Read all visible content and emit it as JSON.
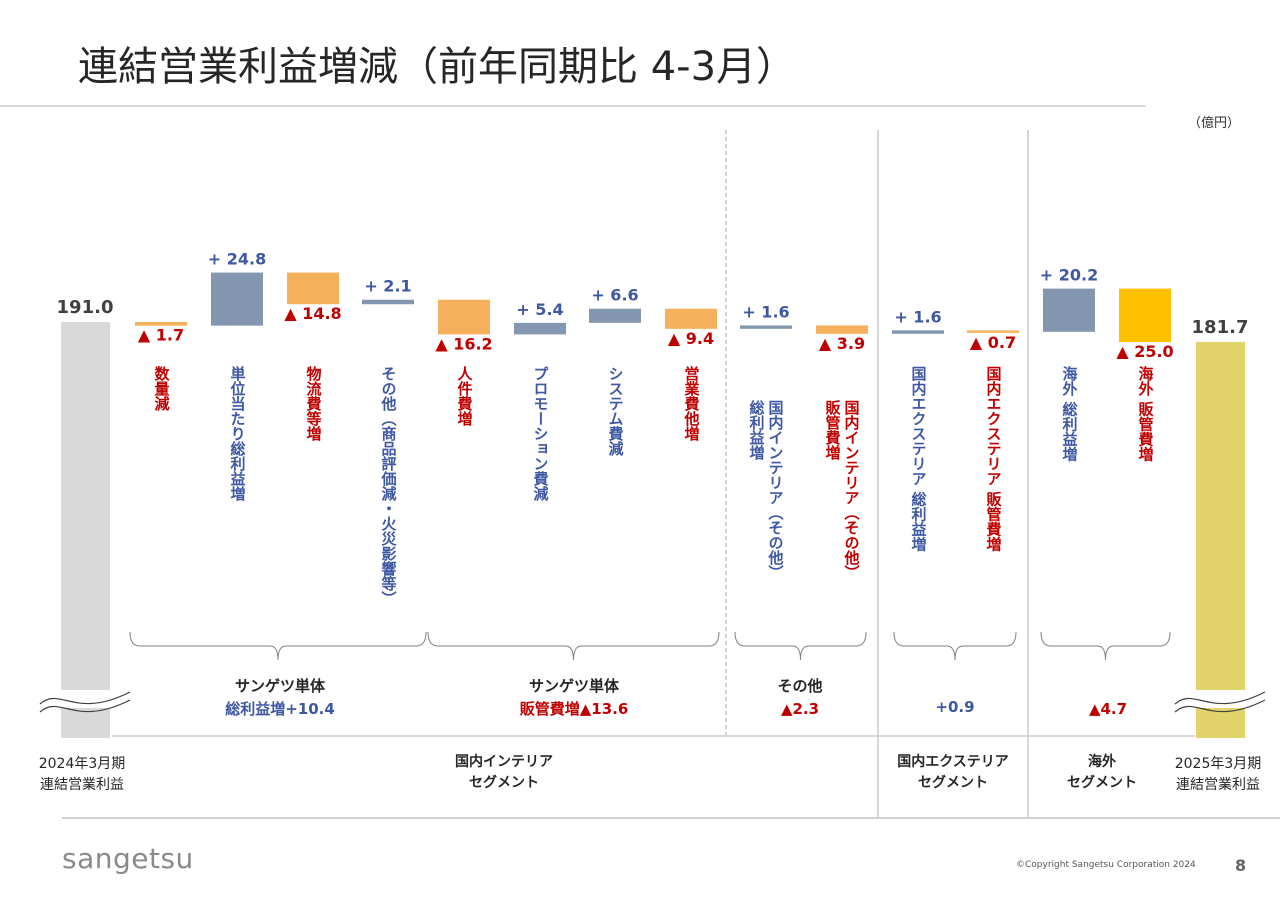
{
  "title": "連結営業利益増減（前年同期比 4-3月）",
  "unit": "（億円）",
  "footer": {
    "logo": "sangetsu",
    "copyright": "©Copyright Sangetsu Corporation 2024",
    "page": "8"
  },
  "colors": {
    "start": "#d9d9d9",
    "end": "#e2d36b",
    "increase": "#8497b0",
    "decrease": "#f4b05a",
    "decrease_overseas": "#ffc000",
    "blue_text": "#3f58a4",
    "red_text": "#c00000"
  },
  "chart_data": {
    "type": "waterfall",
    "start": {
      "value": 191.0,
      "label": "191.0",
      "axis": [
        "2024年3月期",
        "連結営業利益"
      ]
    },
    "end": {
      "value": 181.7,
      "label": "181.7",
      "axis": [
        "2025年3月期",
        "連結営業利益"
      ]
    },
    "steps": [
      {
        "delta": -1.7,
        "label": "▲ 1.7",
        "desc": [
          "数量減"
        ]
      },
      {
        "delta": 24.8,
        "label": "+ 24.8",
        "desc": [
          "単位当たり総利益増"
        ]
      },
      {
        "delta": -14.8,
        "label": "▲ 14.8",
        "desc": [
          "物流費等増"
        ]
      },
      {
        "delta": 2.1,
        "label": "+ 2.1",
        "desc": [
          "その他（商品評価減・火災影響等）"
        ]
      },
      {
        "delta": -16.2,
        "label": "▲ 16.2",
        "desc": [
          "人件費増"
        ]
      },
      {
        "delta": 5.4,
        "label": "+ 5.4",
        "desc": [
          "プロモーション費減"
        ]
      },
      {
        "delta": 6.6,
        "label": "+ 6.6",
        "desc": [
          "システム費減"
        ]
      },
      {
        "delta": -9.4,
        "label": "▲ 9.4",
        "desc": [
          "営業費他増"
        ]
      },
      {
        "delta": 1.6,
        "label": "+ 1.6",
        "desc": [
          "国内インテリア（その他）",
          "総利益増"
        ]
      },
      {
        "delta": -3.9,
        "label": "▲ 3.9",
        "desc": [
          "国内インテリア（その他）",
          "販管費増"
        ]
      },
      {
        "delta": 1.6,
        "label": "+ 1.6",
        "desc": [
          "国内エクステリア 総利益増"
        ]
      },
      {
        "delta": -0.7,
        "label": "▲ 0.7",
        "desc": [
          "国内エクステリア 販管費増"
        ]
      },
      {
        "delta": 20.2,
        "label": "+ 20.2",
        "desc": [
          "海外 総利益増"
        ]
      },
      {
        "delta": -25.0,
        "label": "▲ 25.0",
        "desc": [
          "海外 販管費増"
        ]
      }
    ],
    "subtotals": [
      {
        "lines": [
          "サンゲツ単体",
          "総利益増+10.4"
        ]
      },
      {
        "lines": [
          "サンゲツ単体",
          "販管費増▲13.6"
        ]
      },
      {
        "lines": [
          "その他",
          "▲2.3"
        ]
      },
      {
        "lines": [
          "+0.9"
        ]
      },
      {
        "lines": [
          "▲4.7"
        ]
      }
    ],
    "segments": [
      {
        "lines": [
          "国内インテリア",
          "セグメント"
        ]
      },
      {
        "lines": [
          "国内エクステリア",
          "セグメント"
        ]
      },
      {
        "lines": [
          "海外",
          "セグメント"
        ]
      }
    ]
  }
}
